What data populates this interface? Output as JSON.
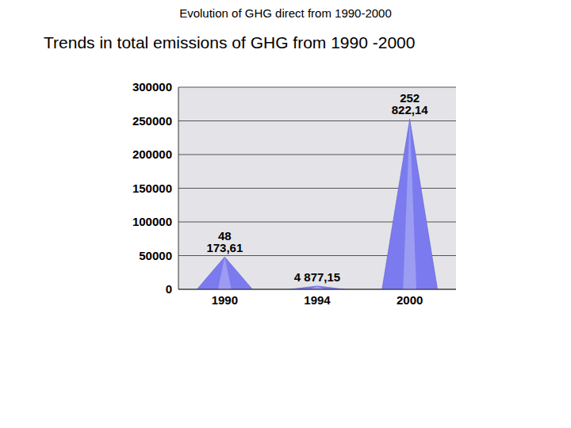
{
  "chart_data": {
    "type": "bar",
    "title": "Evolution of GHG direct from 1990-2000",
    "subtitle": "Trends in total emissions of GHG from 1990 -2000",
    "categories": [
      "1990",
      "1994",
      "2000"
    ],
    "values": [
      48173.61,
      4877.15,
      252822.14
    ],
    "value_labels": [
      "48 173,61",
      "4 877,15",
      "252 822,14"
    ],
    "color": "#7b7bef",
    "ylim": [
      0,
      300000
    ],
    "yticks": [
      0,
      50000,
      100000,
      150000,
      200000,
      250000,
      300000
    ],
    "grid": true,
    "data_labels": true
  }
}
